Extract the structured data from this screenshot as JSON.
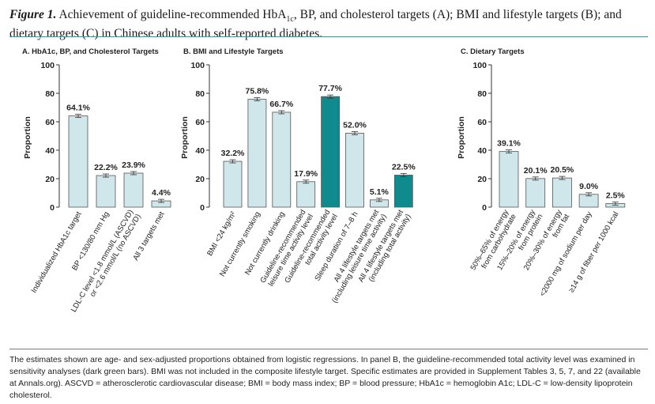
{
  "caption": {
    "figure_label": "Figure 1.",
    "text_before_a1c": "Achievement of guideline-recommended HbA",
    "a1c_subscript": "1c",
    "text_after_a1c": ", BP, and cholesterol targets (A); BMI and lifestyle targets (B); and dietary targets (C) in Chinese adults with self-reported diabetes."
  },
  "footnote": "The estimates shown are age- and sex-adjusted proportions obtained from logistic regressions. In panel B, the guideline-recommended total activity level was examined in sensitivity analyses (dark green bars). BMI was not included in the composite lifestyle target. Specific estimates are provided in Supplement Tables 3, 5, 7, and 22 (available at Annals.org). ASCVD = atherosclerotic cardiovascular disease; BMI = body mass index; BP = blood pressure; HbA1c = hemoglobin A1c; LDL-C = low-density lipoprotein cholesterol.",
  "colors": {
    "light_bar": "#cfe6ea",
    "dark_bar": "#0f8b8d",
    "bar_stroke": "#555555",
    "rule": "#4a8f98"
  },
  "chart_data": [
    {
      "type": "bar",
      "title": "A. HbA1c, BP, and Cholesterol Targets",
      "ylabel": "Proportion",
      "ylim": [
        0,
        100
      ],
      "yticks": [
        0,
        20,
        40,
        60,
        80,
        100
      ],
      "categories": [
        [
          "Individualized HbA1c target"
        ],
        [
          "BP <130/80 mm Hg"
        ],
        [
          "LDL-C level <1.8 mmol/L (ASCVD)",
          "or <2.6 mmol/L (no ASCVD)"
        ],
        [
          "All 3 targets met"
        ]
      ],
      "values": [
        64.1,
        22.2,
        23.9,
        4.4
      ],
      "labels": [
        "64.1%",
        "22.2%",
        "23.9%",
        "4.4%"
      ],
      "highlight": [
        false,
        false,
        false,
        false
      ]
    },
    {
      "type": "bar",
      "title": "B. BMI and Lifestyle Targets",
      "ylabel": "Proportion",
      "ylim": [
        0,
        100
      ],
      "yticks": [
        0,
        20,
        40,
        60,
        80,
        100
      ],
      "categories": [
        [
          "BMI <24 kg/m²"
        ],
        [
          "Not currently smoking"
        ],
        [
          "Not currently drinking"
        ],
        [
          "Guideline-recommended",
          "leisure time activity level"
        ],
        [
          "Guideline-recommended",
          "total activity level"
        ],
        [
          "Sleep duration of 7–8 h"
        ],
        [
          "All 4 lifestyle targets met",
          "(including leisure time activity)"
        ],
        [
          "All 4 lifestyle targets met",
          "(including total activity)"
        ]
      ],
      "values": [
        32.2,
        75.8,
        66.7,
        17.9,
        77.7,
        52.0,
        5.1,
        22.5
      ],
      "labels": [
        "32.2%",
        "75.8%",
        "66.7%",
        "17.9%",
        "77.7%",
        "52.0%",
        "5.1%",
        "22.5%"
      ],
      "highlight": [
        false,
        false,
        false,
        false,
        true,
        false,
        false,
        true
      ]
    },
    {
      "type": "bar",
      "title": "C. Dietary Targets",
      "ylabel": "Proportion",
      "ylim": [
        0,
        100
      ],
      "yticks": [
        0,
        20,
        40,
        60,
        80,
        100
      ],
      "categories": [
        [
          "50%–65% of energy",
          "from carbohydrate"
        ],
        [
          "15%–20% of energy",
          "from protein"
        ],
        [
          "20%–30% of energy",
          "from fat"
        ],
        [
          "<2000 mg of sodium per day"
        ],
        [
          "≥14 g of fiber per 1000 kcal"
        ]
      ],
      "values": [
        39.1,
        20.1,
        20.5,
        9.0,
        2.5
      ],
      "labels": [
        "39.1%",
        "20.1%",
        "20.5%",
        "9.0%",
        "2.5%"
      ],
      "highlight": [
        false,
        false,
        false,
        false,
        false
      ]
    }
  ]
}
